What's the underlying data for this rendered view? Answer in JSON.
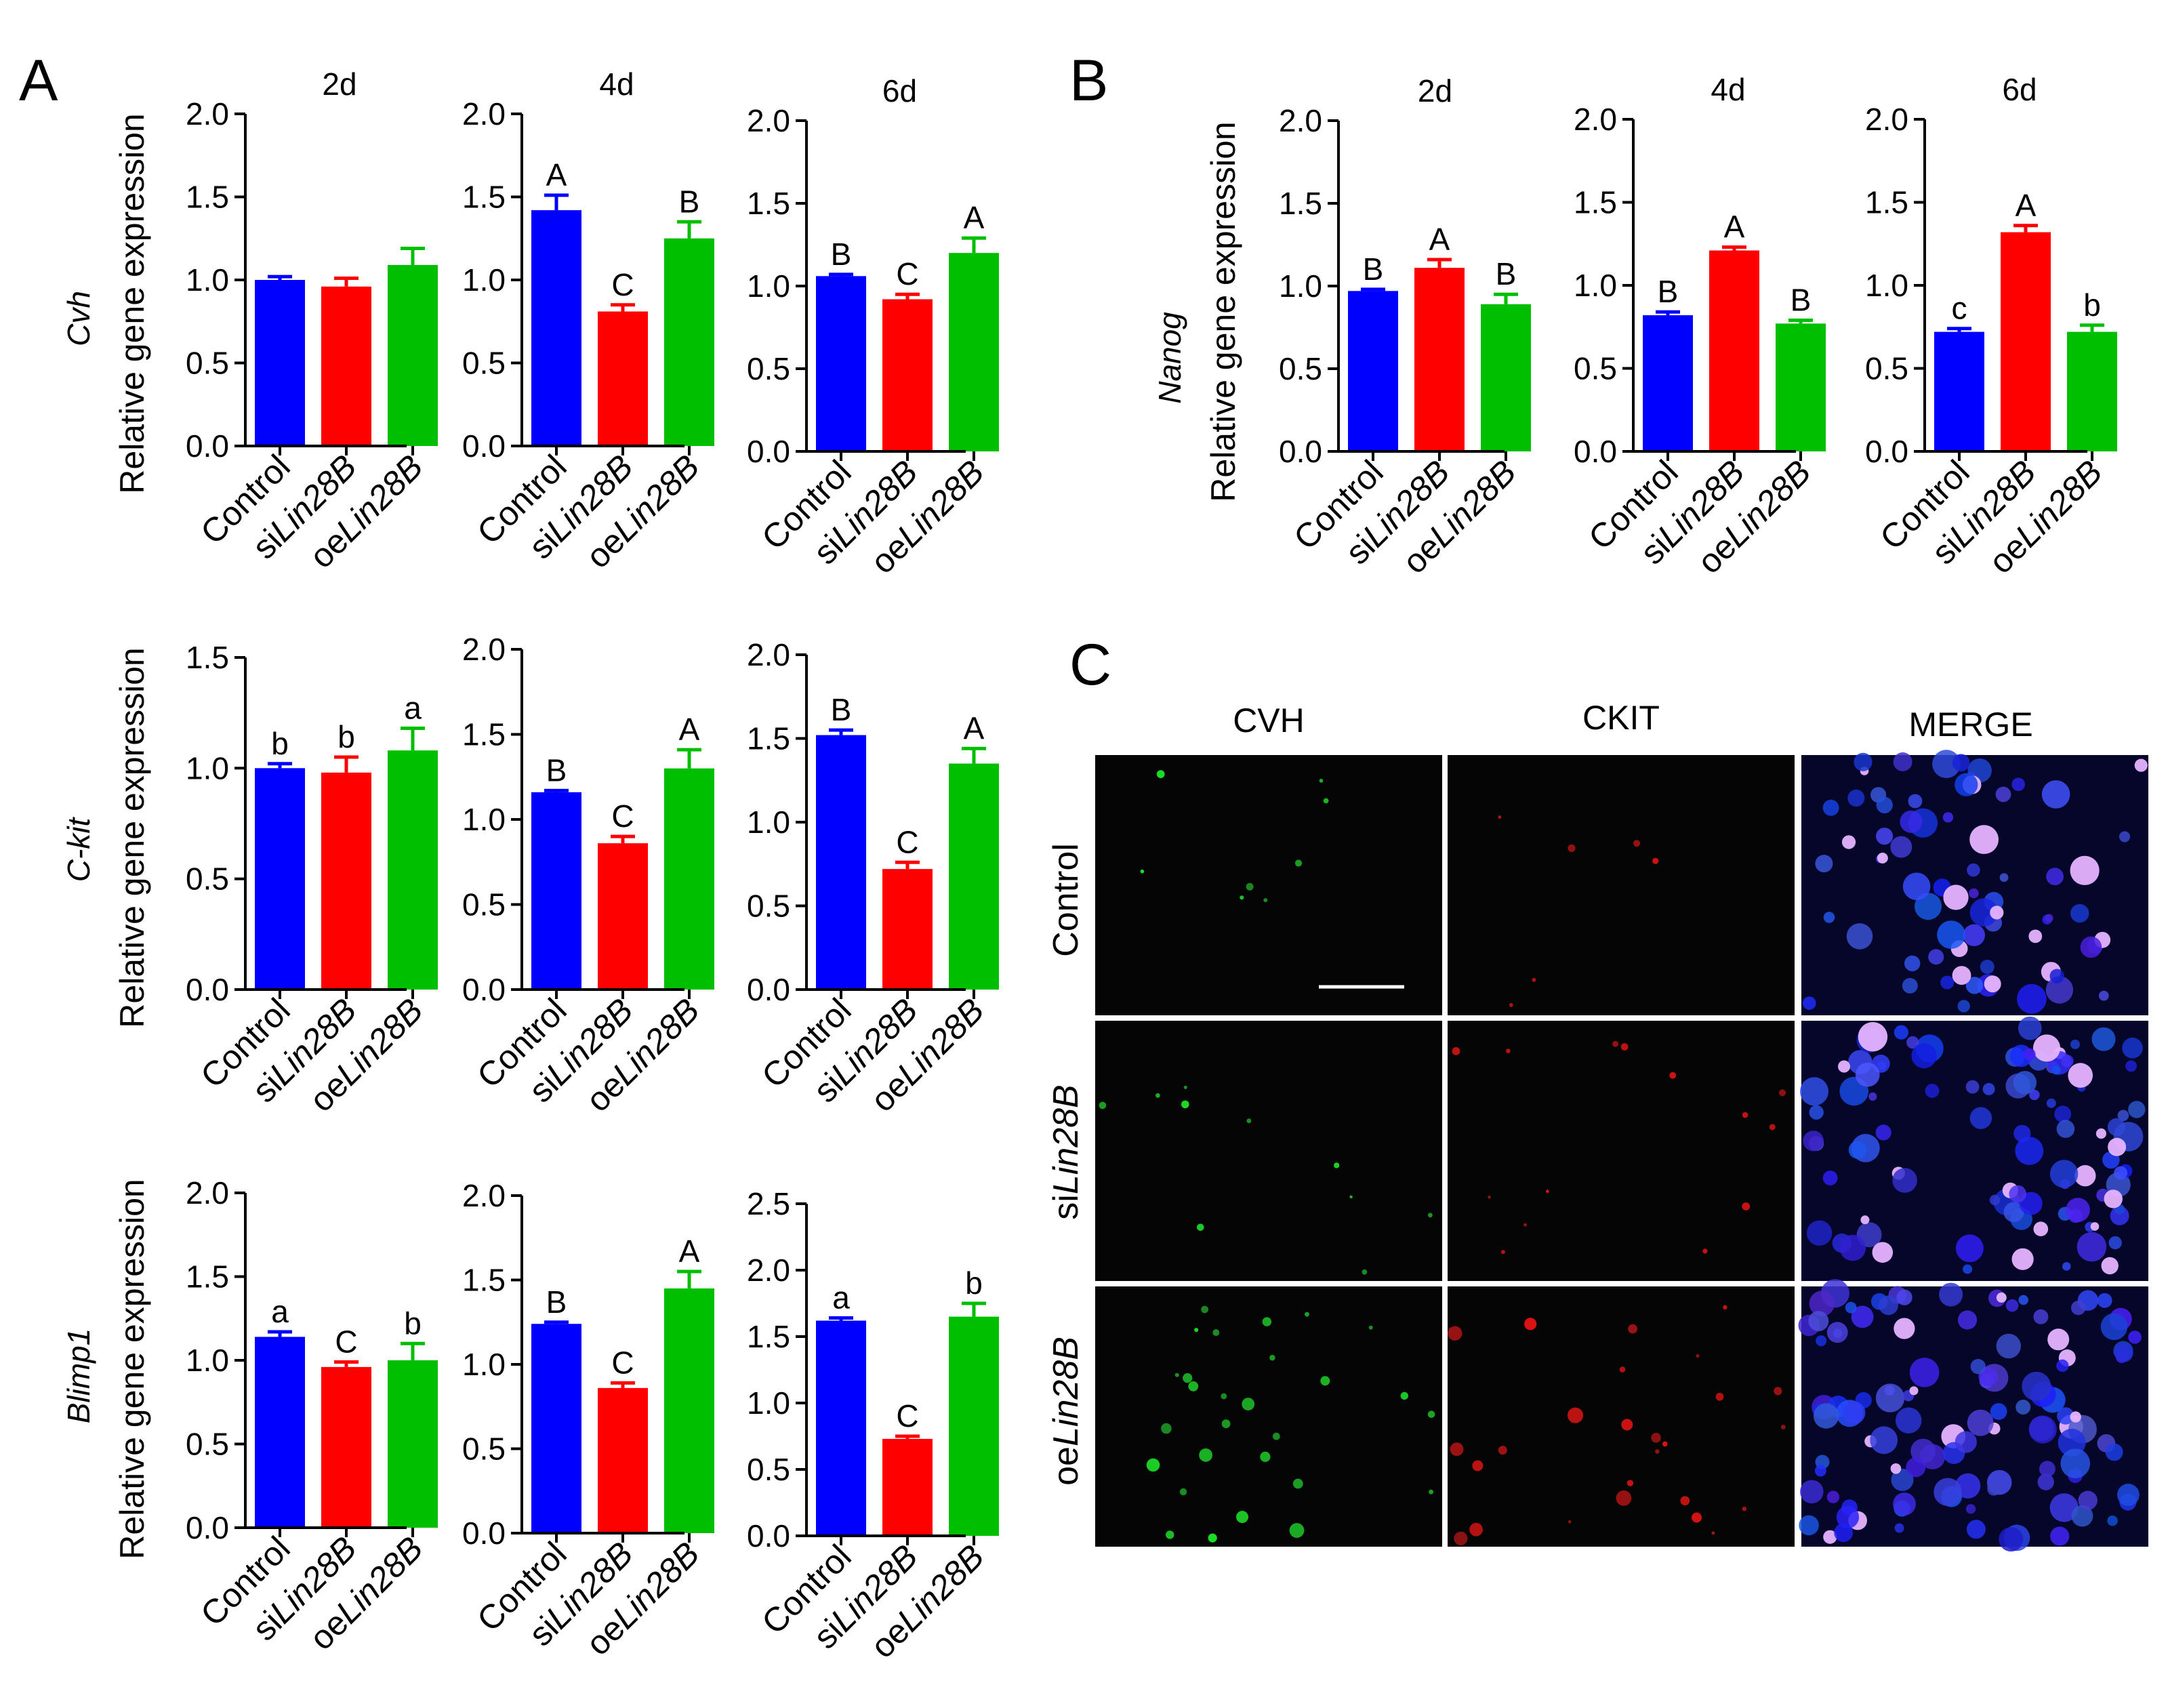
{
  "panel_labels": {
    "A": "A",
    "B": "B",
    "C": "C"
  },
  "colors": {
    "control": "#0000ff",
    "si": "#ff0000",
    "oe": "#00bf00",
    "axis": "#000000"
  },
  "y_axis_label": "Relative gene expression",
  "category_labels": {
    "control": "Control",
    "si_prefix": "si",
    "oe_prefix": "oe",
    "gene_italic": "Lin28B"
  },
  "chart_data": [
    {
      "id": "cvh-2d",
      "type": "bar",
      "panel": "A",
      "gene": "Cvh",
      "title": "2d",
      "ylim": [
        0,
        2.0
      ],
      "ticks": [
        "0.0",
        "0.5",
        "1.0",
        "1.5",
        "2.0"
      ],
      "categories": [
        "Control",
        "siLin28B",
        "oeLin28B"
      ],
      "values": [
        1.0,
        0.96,
        1.09
      ],
      "errors": [
        0.02,
        0.05,
        0.1
      ],
      "letters": [
        "",
        "",
        ""
      ]
    },
    {
      "id": "cvh-4d",
      "type": "bar",
      "panel": "A",
      "gene": "Cvh",
      "title": "4d",
      "ylim": [
        0,
        2.0
      ],
      "ticks": [
        "0.0",
        "0.5",
        "1.0",
        "1.5",
        "2.0"
      ],
      "categories": [
        "Control",
        "siLin28B",
        "oeLin28B"
      ],
      "values": [
        1.42,
        0.81,
        1.25
      ],
      "errors": [
        0.09,
        0.04,
        0.1
      ],
      "letters": [
        "A",
        "C",
        "B"
      ]
    },
    {
      "id": "cvh-6d",
      "type": "bar",
      "panel": "A",
      "gene": "Cvh",
      "title": "6d",
      "ylim": [
        0,
        2.0
      ],
      "ticks": [
        "0.0",
        "0.5",
        "1.0",
        "1.5",
        "2.0"
      ],
      "categories": [
        "Control",
        "siLin28B",
        "oeLin28B"
      ],
      "values": [
        1.06,
        0.92,
        1.2
      ],
      "errors": [
        0.01,
        0.03,
        0.09
      ],
      "letters": [
        "B",
        "C",
        "A"
      ]
    },
    {
      "id": "nanog-2d",
      "type": "bar",
      "panel": "B",
      "gene": "Nanog",
      "title": "2d",
      "ylim": [
        0,
        2.0
      ],
      "ticks": [
        "0.0",
        "0.5",
        "1.0",
        "1.5",
        "2.0"
      ],
      "categories": [
        "Control",
        "siLin28B",
        "oeLin28B"
      ],
      "values": [
        0.97,
        1.11,
        0.89
      ],
      "errors": [
        0.01,
        0.05,
        0.06
      ],
      "letters": [
        "B",
        "A",
        "B"
      ]
    },
    {
      "id": "nanog-4d",
      "type": "bar",
      "panel": "B",
      "gene": "Nanog",
      "title": "4d",
      "ylim": [
        0,
        2.0
      ],
      "ticks": [
        "0.0",
        "0.5",
        "1.0",
        "1.5",
        "2.0"
      ],
      "categories": [
        "Control",
        "siLin28B",
        "oeLin28B"
      ],
      "values": [
        0.82,
        1.21,
        0.77
      ],
      "errors": [
        0.02,
        0.02,
        0.02
      ],
      "letters": [
        "B",
        "A",
        "B"
      ]
    },
    {
      "id": "nanog-6d",
      "type": "bar",
      "panel": "B",
      "gene": "Nanog",
      "title": "6d",
      "ylim": [
        0,
        2.0
      ],
      "ticks": [
        "0.0",
        "0.5",
        "1.0",
        "1.5",
        "2.0"
      ],
      "categories": [
        "Control",
        "siLin28B",
        "oeLin28B"
      ],
      "values": [
        0.72,
        1.32,
        0.72
      ],
      "errors": [
        0.02,
        0.04,
        0.04
      ],
      "letters": [
        "c",
        "A",
        "b"
      ]
    },
    {
      "id": "ckit-2d",
      "type": "bar",
      "panel": "A",
      "gene": "C-kit",
      "title": "",
      "ylim": [
        0,
        1.5
      ],
      "ticks": [
        "0.0",
        "0.5",
        "1.0",
        "1.5"
      ],
      "categories": [
        "Control",
        "siLin28B",
        "oeLin28B"
      ],
      "values": [
        1.0,
        0.98,
        1.08
      ],
      "errors": [
        0.02,
        0.07,
        0.1
      ],
      "letters": [
        "b",
        "b",
        "a"
      ]
    },
    {
      "id": "ckit-4d",
      "type": "bar",
      "panel": "A",
      "gene": "C-kit",
      "title": "",
      "ylim": [
        0,
        2.0
      ],
      "ticks": [
        "0.0",
        "0.5",
        "1.0",
        "1.5",
        "2.0"
      ],
      "categories": [
        "Control",
        "siLin28B",
        "oeLin28B"
      ],
      "values": [
        1.16,
        0.86,
        1.3
      ],
      "errors": [
        0.01,
        0.04,
        0.11
      ],
      "letters": [
        "B",
        "C",
        "A"
      ]
    },
    {
      "id": "ckit-6d",
      "type": "bar",
      "panel": "A",
      "gene": "C-kit",
      "title": "",
      "ylim": [
        0,
        2.0
      ],
      "ticks": [
        "0.0",
        "0.5",
        "1.0",
        "1.5",
        "2.0"
      ],
      "categories": [
        "Control",
        "siLin28B",
        "oeLin28B"
      ],
      "values": [
        1.52,
        0.72,
        1.35
      ],
      "errors": [
        0.03,
        0.04,
        0.09
      ],
      "letters": [
        "B",
        "C",
        "A"
      ]
    },
    {
      "id": "blimp1-2d",
      "type": "bar",
      "panel": "A",
      "gene": "Blimp1",
      "title": "",
      "ylim": [
        0,
        2.0
      ],
      "ticks": [
        "0.0",
        "0.5",
        "1.0",
        "1.5",
        "2.0"
      ],
      "categories": [
        "Control",
        "siLin28B",
        "oeLin28B"
      ],
      "values": [
        1.14,
        0.96,
        1.0
      ],
      "errors": [
        0.03,
        0.03,
        0.1
      ],
      "letters": [
        "a",
        "C",
        "b"
      ]
    },
    {
      "id": "blimp1-4d",
      "type": "bar",
      "panel": "A",
      "gene": "Blimp1",
      "title": "",
      "ylim": [
        0,
        2.0
      ],
      "ticks": [
        "0.0",
        "0.5",
        "1.0",
        "1.5",
        "2.0"
      ],
      "categories": [
        "Control",
        "siLin28B",
        "oeLin28B"
      ],
      "values": [
        1.24,
        0.86,
        1.45
      ],
      "errors": [
        0.01,
        0.03,
        0.1
      ],
      "letters": [
        "B",
        "C",
        "A"
      ]
    },
    {
      "id": "blimp1-6d",
      "type": "bar",
      "panel": "A",
      "gene": "Blimp1",
      "title": "",
      "ylim": [
        0,
        2.5
      ],
      "ticks": [
        "0.0",
        "0.5",
        "1.0",
        "1.5",
        "2.0",
        "2.5"
      ],
      "categories": [
        "Control",
        "siLin28B",
        "oeLin28B"
      ],
      "values": [
        1.62,
        0.73,
        1.65
      ],
      "errors": [
        0.02,
        0.02,
        0.1
      ],
      "letters": [
        "a",
        "C",
        "b"
      ]
    }
  ],
  "microscopy": {
    "column_headers": [
      "CVH",
      "CKIT",
      "MERGE"
    ],
    "row_labels": [
      {
        "plain": "Control",
        "prefix": "",
        "italic": ""
      },
      {
        "plain": "",
        "prefix": "si",
        "italic": "Lin28B"
      },
      {
        "plain": "",
        "prefix": "oe",
        "italic": "Lin28B"
      }
    ]
  }
}
